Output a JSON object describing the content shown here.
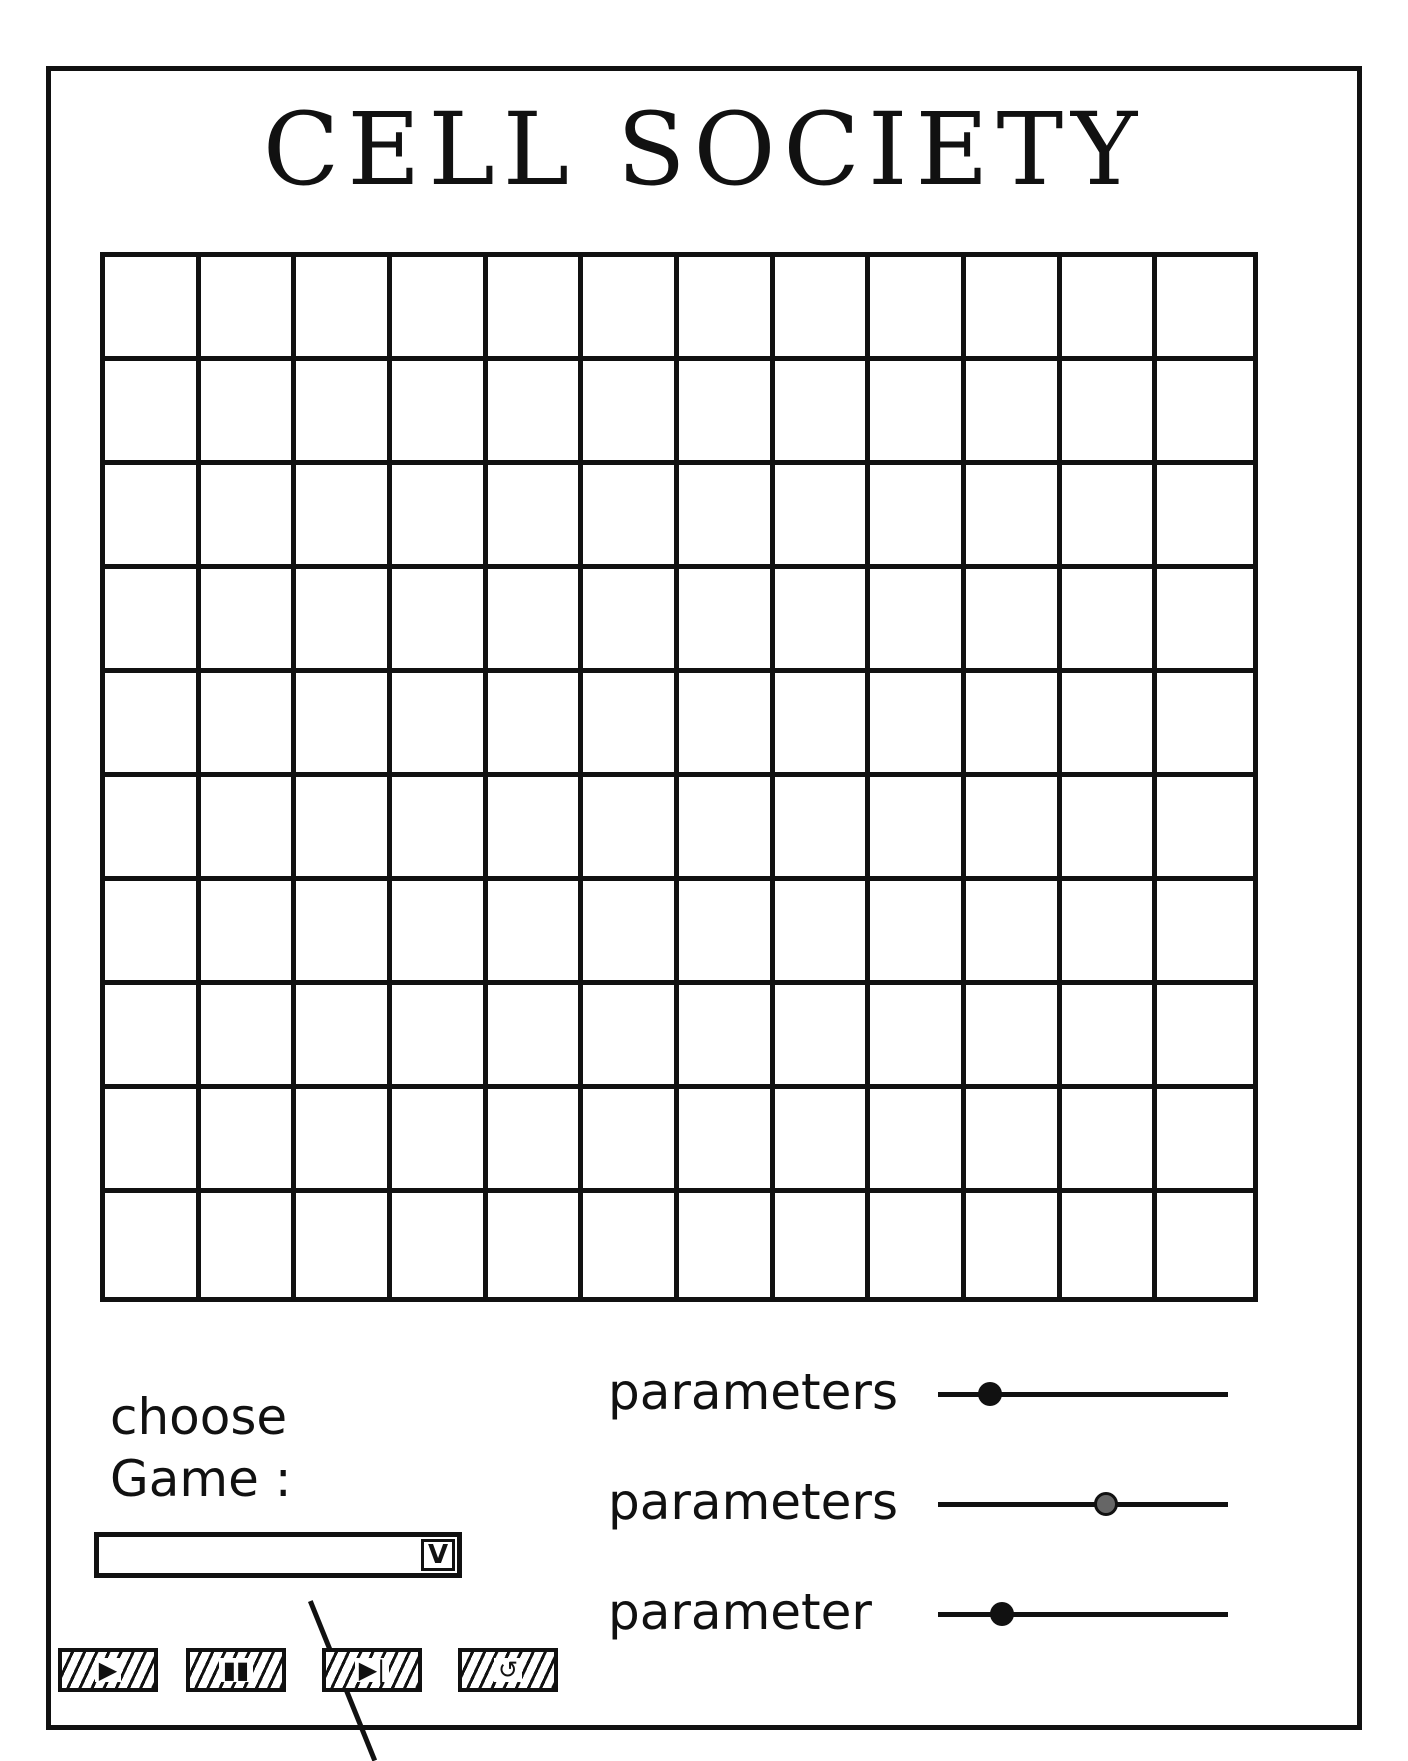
{
  "app": {
    "title": "CELL SOCIETY"
  },
  "grid": {
    "rows": 10,
    "columns": 12
  },
  "game_select": {
    "label": "choose\nGame :",
    "selected_value": "",
    "arrow_icon": "chevron-down-icon",
    "arrow_glyph": "V"
  },
  "controls": [
    {
      "name": "play-button",
      "icon": "play-icon",
      "glyph": "▶"
    },
    {
      "name": "pause-button",
      "icon": "pause-icon",
      "glyph": "▮▮"
    },
    {
      "name": "step-button",
      "icon": "step-icon",
      "glyph": "▶|"
    },
    {
      "name": "reset-button",
      "icon": "reset-icon",
      "glyph": "↺"
    }
  ],
  "parameters": [
    {
      "label": "parameters",
      "value": 0.18
    },
    {
      "label": "parameters",
      "value": 0.58
    },
    {
      "label": "parameter",
      "value": 0.22
    }
  ],
  "colors": {
    "ink": "#111111",
    "background": "#ffffff"
  }
}
